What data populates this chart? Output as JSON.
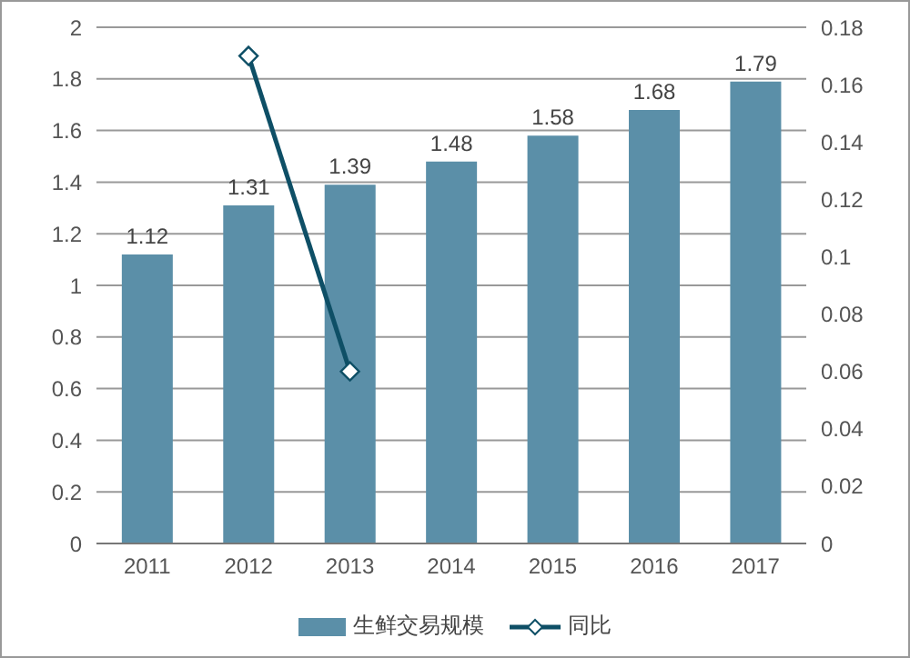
{
  "chart_data": {
    "type": "bar",
    "categories": [
      "2011",
      "2012",
      "2013",
      "2014",
      "2015",
      "2016",
      "2017"
    ],
    "series": [
      {
        "name": "生鲜交易规模",
        "color": "#5b8fa8",
        "values": [
          1.12,
          1.31,
          1.39,
          1.48,
          1.58,
          1.68,
          1.79
        ],
        "value_labels": [
          "1.12",
          "1.31",
          "1.39",
          "1.48",
          "1.58",
          "1.68",
          "1.79"
        ]
      },
      {
        "name": "同比",
        "type": "line",
        "axis": "y2",
        "color": "#0e4f66",
        "values": [
          null,
          0.17,
          0.06,
          null,
          null,
          null,
          null
        ],
        "marker": "diamond"
      }
    ],
    "ylim": [
      0,
      2
    ],
    "yticks": [
      0,
      0.2,
      0.4,
      0.6,
      0.8,
      1,
      1.2,
      1.4,
      1.6,
      1.8,
      2
    ],
    "y2lim": [
      0,
      0.18
    ],
    "y2ticks": [
      0,
      0.02,
      0.04,
      0.06,
      0.08,
      0.1,
      0.12,
      0.14,
      0.16,
      0.18
    ],
    "grid": "y",
    "legend": "bottom"
  }
}
